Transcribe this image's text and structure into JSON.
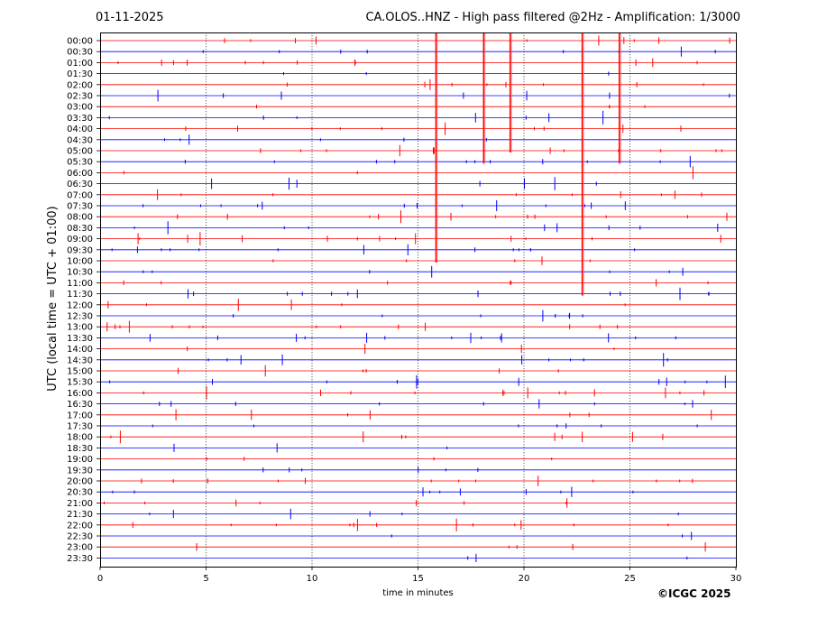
{
  "header": {
    "date": "01-11-2025",
    "title": "CA.OLOS..HNZ - High pass filtered @2Hz - Amplification: 1/3000"
  },
  "footer": {
    "copyright": "©ICGC 2025"
  },
  "chart_data": {
    "type": "line",
    "title": "CA.OLOS..HNZ - High pass filtered @2Hz - Amplification: 1/3000",
    "xlabel": "time in minutes",
    "ylabel": "UTC (local time = UTC + 01:00)",
    "xlim": [
      0,
      30
    ],
    "x_ticks": [
      0,
      5,
      10,
      15,
      20,
      25,
      30
    ],
    "vertical_gridlines": [
      5,
      10,
      15,
      20,
      25
    ],
    "grid": true,
    "series_colors": [
      "#ff0000",
      "#0000ff"
    ],
    "rows": [
      "00:00",
      "00:30",
      "01:00",
      "01:30",
      "02:00",
      "02:30",
      "03:00",
      "03:30",
      "04:00",
      "04:30",
      "05:00",
      "05:30",
      "06:00",
      "06:30",
      "07:00",
      "07:30",
      "08:00",
      "08:30",
      "09:00",
      "09:30",
      "10:00",
      "10:30",
      "11:00",
      "11:30",
      "12:00",
      "12:30",
      "13:00",
      "13:30",
      "14:00",
      "14:30",
      "15:00",
      "15:30",
      "16:00",
      "16:30",
      "17:00",
      "17:30",
      "18:00",
      "18:30",
      "19:00",
      "19:30",
      "20:00",
      "20:30",
      "21:00",
      "21:30",
      "22:00",
      "22:30",
      "23:00",
      "23:30"
    ],
    "spikes": [
      {
        "x": 15.85,
        "from_row": "00:00",
        "to_row": "10:00"
      },
      {
        "x": 18.1,
        "from_row": "00:00",
        "to_row": "05:30"
      },
      {
        "x": 19.35,
        "from_row": "00:00",
        "to_row": "05:00"
      },
      {
        "x": 22.75,
        "from_row": "00:00",
        "to_row": "11:30"
      },
      {
        "x": 24.5,
        "from_row": "00:00",
        "to_row": "05:30"
      }
    ]
  }
}
